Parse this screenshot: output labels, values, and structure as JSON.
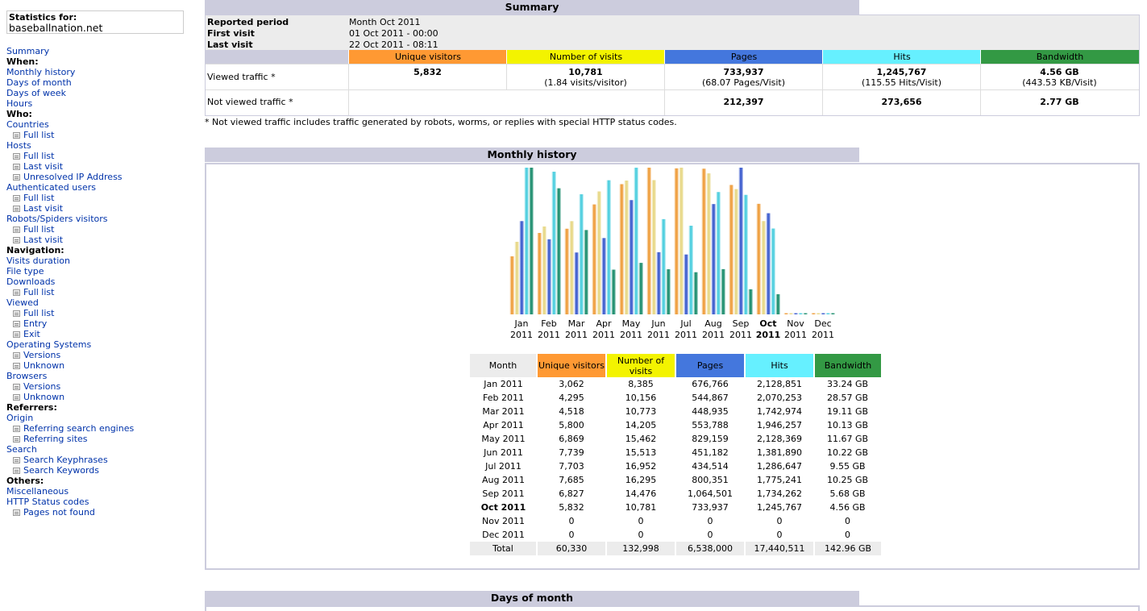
{
  "sidebar": {
    "stats_label": "Statistics for:",
    "site": "baseballnation.net",
    "items": [
      {
        "text": "Summary",
        "type": "link"
      },
      {
        "text": "When:",
        "type": "head"
      },
      {
        "text": "Monthly history",
        "type": "link"
      },
      {
        "text": "Days of month",
        "type": "link"
      },
      {
        "text": "Days of week",
        "type": "link"
      },
      {
        "text": "Hours",
        "type": "link"
      },
      {
        "text": "Who:",
        "type": "head"
      },
      {
        "text": "Countries",
        "type": "link"
      },
      {
        "text": "Full list",
        "type": "sub"
      },
      {
        "text": "Hosts",
        "type": "link"
      },
      {
        "text": "Full list",
        "type": "sub"
      },
      {
        "text": "Last visit",
        "type": "sub"
      },
      {
        "text": "Unresolved IP Address",
        "type": "sub"
      },
      {
        "text": "Authenticated users",
        "type": "link"
      },
      {
        "text": "Full list",
        "type": "sub"
      },
      {
        "text": "Last visit",
        "type": "sub"
      },
      {
        "text": "Robots/Spiders visitors",
        "type": "link"
      },
      {
        "text": "Full list",
        "type": "sub"
      },
      {
        "text": "Last visit",
        "type": "sub"
      },
      {
        "text": "Navigation:",
        "type": "head"
      },
      {
        "text": "Visits duration",
        "type": "link"
      },
      {
        "text": "File type",
        "type": "link"
      },
      {
        "text": "Downloads",
        "type": "link"
      },
      {
        "text": "Full list",
        "type": "sub"
      },
      {
        "text": "Viewed",
        "type": "link"
      },
      {
        "text": "Full list",
        "type": "sub"
      },
      {
        "text": "Entry",
        "type": "sub"
      },
      {
        "text": "Exit",
        "type": "sub"
      },
      {
        "text": "Operating Systems",
        "type": "link"
      },
      {
        "text": "Versions",
        "type": "sub"
      },
      {
        "text": "Unknown",
        "type": "sub"
      },
      {
        "text": "Browsers",
        "type": "link"
      },
      {
        "text": "Versions",
        "type": "sub"
      },
      {
        "text": "Unknown",
        "type": "sub"
      },
      {
        "text": "Referrers:",
        "type": "head"
      },
      {
        "text": "Origin",
        "type": "link"
      },
      {
        "text": "Referring search engines",
        "type": "sub"
      },
      {
        "text": "Referring sites",
        "type": "sub"
      },
      {
        "text": "Search",
        "type": "link"
      },
      {
        "text": "Search Keyphrases",
        "type": "sub"
      },
      {
        "text": "Search Keywords",
        "type": "sub"
      },
      {
        "text": "Others:",
        "type": "head"
      },
      {
        "text": "Miscellaneous",
        "type": "link"
      },
      {
        "text": "HTTP Status codes",
        "type": "link"
      },
      {
        "text": "Pages not found",
        "type": "sub"
      }
    ]
  },
  "summary": {
    "title": "Summary",
    "reported_period_label": "Reported period",
    "reported_period": "Month Oct 2011",
    "first_visit_label": "First visit",
    "first_visit": "01 Oct 2011 - 00:00",
    "last_visit_label": "Last visit",
    "last_visit": "22 Oct 2011 - 08:11",
    "columns": [
      {
        "label": "Unique visitors",
        "color": "#ff9933"
      },
      {
        "label": "Number of visits",
        "color": "#f3f300"
      },
      {
        "label": "Pages",
        "color": "#4477dd"
      },
      {
        "label": "Hits",
        "color": "#66f0ff"
      },
      {
        "label": "Bandwidth",
        "color": "#339944"
      }
    ],
    "viewed_label": "Viewed traffic *",
    "viewed": {
      "unique": "5,832",
      "visits": "10,781",
      "visits_sub": "(1.84 visits/visitor)",
      "pages": "733,937",
      "pages_sub": "(68.07 Pages/Visit)",
      "hits": "1,245,767",
      "hits_sub": "(115.55 Hits/Visit)",
      "bandwidth": "4.56 GB",
      "bandwidth_sub": "(443.53 KB/Visit)"
    },
    "not_viewed_label": "Not viewed traffic *",
    "not_viewed": {
      "pages": "212,397",
      "hits": "273,656",
      "bandwidth": "2.77 GB"
    },
    "footnote": "* Not viewed traffic includes traffic generated by robots, worms, or replies with special HTTP status codes."
  },
  "monthly": {
    "title": "Monthly history",
    "headers": [
      "Month",
      "Unique visitors",
      "Number of visits",
      "Pages",
      "Hits",
      "Bandwidth"
    ],
    "header_colors": [
      "#ececec",
      "#ff9933",
      "#f3f300",
      "#4477dd",
      "#66f0ff",
      "#339944"
    ],
    "rows": [
      [
        "Jan 2011",
        "3,062",
        "8,385",
        "676,766",
        "2,128,851",
        "33.24 GB"
      ],
      [
        "Feb 2011",
        "4,295",
        "10,156",
        "544,867",
        "2,070,253",
        "28.57 GB"
      ],
      [
        "Mar 2011",
        "4,518",
        "10,773",
        "448,935",
        "1,742,974",
        "19.11 GB"
      ],
      [
        "Apr 2011",
        "5,800",
        "14,205",
        "553,788",
        "1,946,257",
        "10.13 GB"
      ],
      [
        "May 2011",
        "6,869",
        "15,462",
        "829,159",
        "2,128,369",
        "11.67 GB"
      ],
      [
        "Jun 2011",
        "7,739",
        "15,513",
        "451,182",
        "1,381,890",
        "10.22 GB"
      ],
      [
        "Jul 2011",
        "7,703",
        "16,952",
        "434,514",
        "1,286,647",
        "9.55 GB"
      ],
      [
        "Aug 2011",
        "7,685",
        "16,295",
        "800,351",
        "1,775,241",
        "10.25 GB"
      ],
      [
        "Sep 2011",
        "6,827",
        "14,476",
        "1,064,501",
        "1,734,262",
        "5.68 GB"
      ],
      [
        "Oct 2011",
        "5,832",
        "10,781",
        "733,937",
        "1,245,767",
        "4.56 GB"
      ],
      [
        "Nov 2011",
        "0",
        "0",
        "0",
        "0",
        "0"
      ],
      [
        "Dec 2011",
        "0",
        "0",
        "0",
        "0",
        "0"
      ]
    ],
    "total": [
      "Total",
      "60,330",
      "132,998",
      "6,538,000",
      "17,440,511",
      "142.96 GB"
    ],
    "current_month": "Oct 2011"
  },
  "chart_data": {
    "type": "bar",
    "categories": [
      "Jan",
      "Feb",
      "Mar",
      "Apr",
      "May",
      "Jun",
      "Jul",
      "Aug",
      "Sep",
      "Oct",
      "Nov",
      "Dec"
    ],
    "category_sublabels": [
      "2011",
      "2011",
      "2011",
      "2011",
      "2011",
      "2011",
      "2011",
      "2011",
      "2011",
      "2011",
      "2011",
      "2011"
    ],
    "highlight_category": "Oct",
    "series": [
      {
        "name": "Unique visitors",
        "color": "#ee9933",
        "values": [
          3062,
          4295,
          4518,
          5800,
          6869,
          7739,
          7703,
          7685,
          6827,
          5832,
          0,
          0
        ]
      },
      {
        "name": "Number of visits",
        "color": "#e6d680",
        "values": [
          8385,
          10156,
          10773,
          14205,
          15462,
          15513,
          16952,
          16295,
          14476,
          10781,
          0,
          0
        ]
      },
      {
        "name": "Pages",
        "color": "#3355cc",
        "values": [
          676766,
          544867,
          448935,
          553788,
          829159,
          451182,
          434514,
          800351,
          1064501,
          733937,
          0,
          0
        ]
      },
      {
        "name": "Hits",
        "color": "#44ccdd",
        "values": [
          2128851,
          2070253,
          1742974,
          1946257,
          2128369,
          1381890,
          1286647,
          1775241,
          1734262,
          1245767,
          0,
          0
        ]
      },
      {
        "name": "Bandwidth",
        "color": "#118866",
        "values": [
          33.24,
          28.57,
          19.11,
          10.13,
          11.67,
          10.22,
          9.55,
          10.25,
          5.68,
          4.56,
          0,
          0
        ]
      }
    ]
  },
  "days_of_month": {
    "title": "Days of month"
  }
}
